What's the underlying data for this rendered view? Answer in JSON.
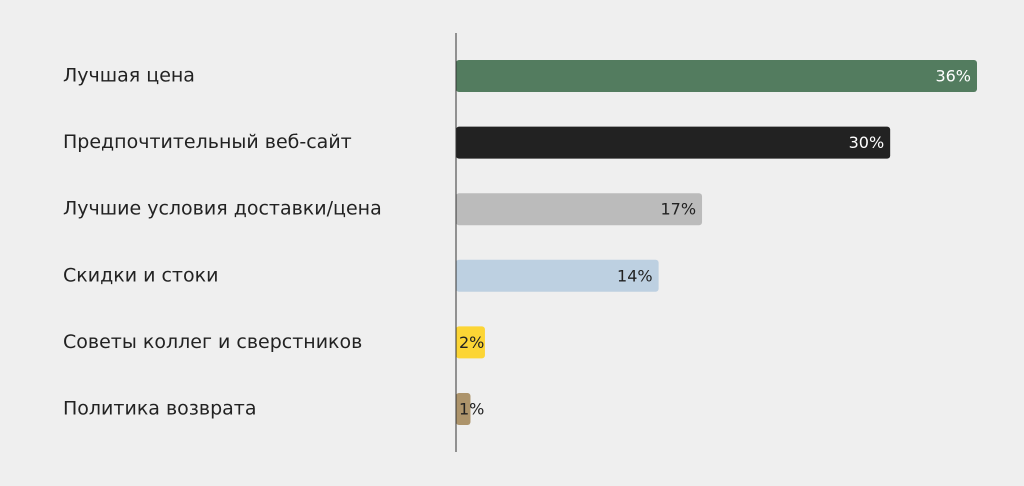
{
  "chart_data": {
    "type": "bar",
    "orientation": "horizontal",
    "categories": [
      "Лучшая цена",
      "Предпочтительный веб-сайт",
      "Лучшие условия доставки/цена",
      "Скидки и стоки",
      "Советы коллег и сверстников",
      "Политика возврата"
    ],
    "values": [
      36,
      30,
      17,
      14,
      2,
      1
    ],
    "value_labels": [
      "36%",
      "30%",
      "17%",
      "14%",
      "2%",
      "1%"
    ],
    "colors": [
      "#537c5f",
      "#222222",
      "#bbbbbb",
      "#bdd0e1",
      "#fcd535",
      "#ad946b"
    ]
  }
}
